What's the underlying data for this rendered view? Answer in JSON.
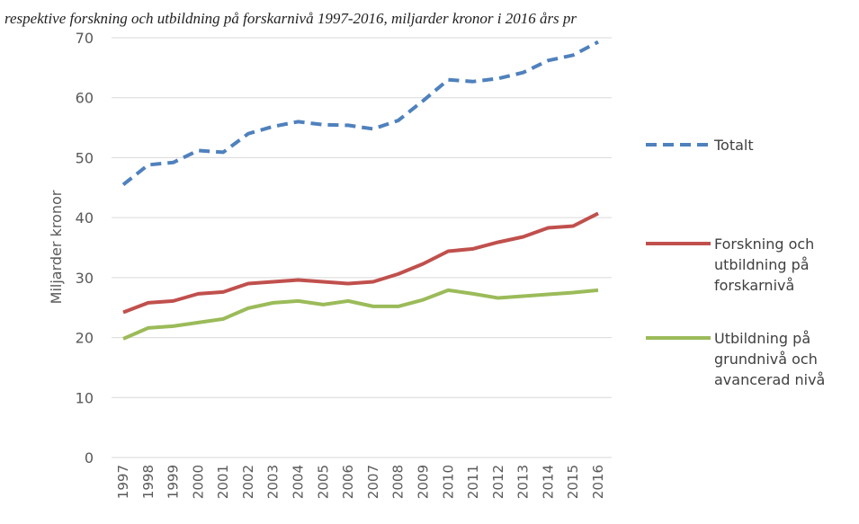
{
  "chart_data": {
    "type": "line",
    "title": "respektive forskning och utbildning på forskarnivå 1997-2016, miljarder kronor i 2016 års pr",
    "y_label": "Miljarder kronor",
    "categories": [
      "1997",
      "1998",
      "1999",
      "2000",
      "2001",
      "2002",
      "2003",
      "2004",
      "2005",
      "2006",
      "2007",
      "2008",
      "2009",
      "2010",
      "2011",
      "2012",
      "2013",
      "2014",
      "2015",
      "2016"
    ],
    "series": [
      {
        "name": "Totalt",
        "color": "#4f81bd",
        "dashed": true,
        "values": [
          45.5,
          48.8,
          49.2,
          51.2,
          50.9,
          54,
          55.2,
          56,
          55.5,
          55.4,
          54.8,
          56.2,
          59.5,
          63,
          62.7,
          63.2,
          64.2,
          66.2,
          67.1,
          69.3
        ]
      },
      {
        "name": "Forskning och utbildning på forskarnivå",
        "color": "#c0504d",
        "dashed": false,
        "values": [
          24.2,
          25.8,
          26.1,
          27.3,
          27.6,
          29,
          29.3,
          29.6,
          29.3,
          29,
          29.3,
          30.6,
          32.3,
          34.4,
          34.8,
          35.9,
          36.8,
          38.3,
          38.6,
          40.7
        ]
      },
      {
        "name": "Utbildning på grundnivå och avancerad nivå",
        "color": "#9bbb59",
        "dashed": false,
        "values": [
          19.8,
          21.6,
          21.9,
          22.5,
          23.1,
          24.9,
          25.8,
          26.1,
          25.5,
          26.1,
          25.2,
          25.2,
          26.3,
          27.9,
          27.3,
          26.6,
          26.9,
          27.2,
          27.5,
          27.9
        ]
      }
    ],
    "ylim": [
      0,
      70
    ],
    "yticks": [
      0,
      10,
      20,
      30,
      40,
      50,
      60,
      70
    ],
    "grid": true,
    "legend": "right"
  }
}
